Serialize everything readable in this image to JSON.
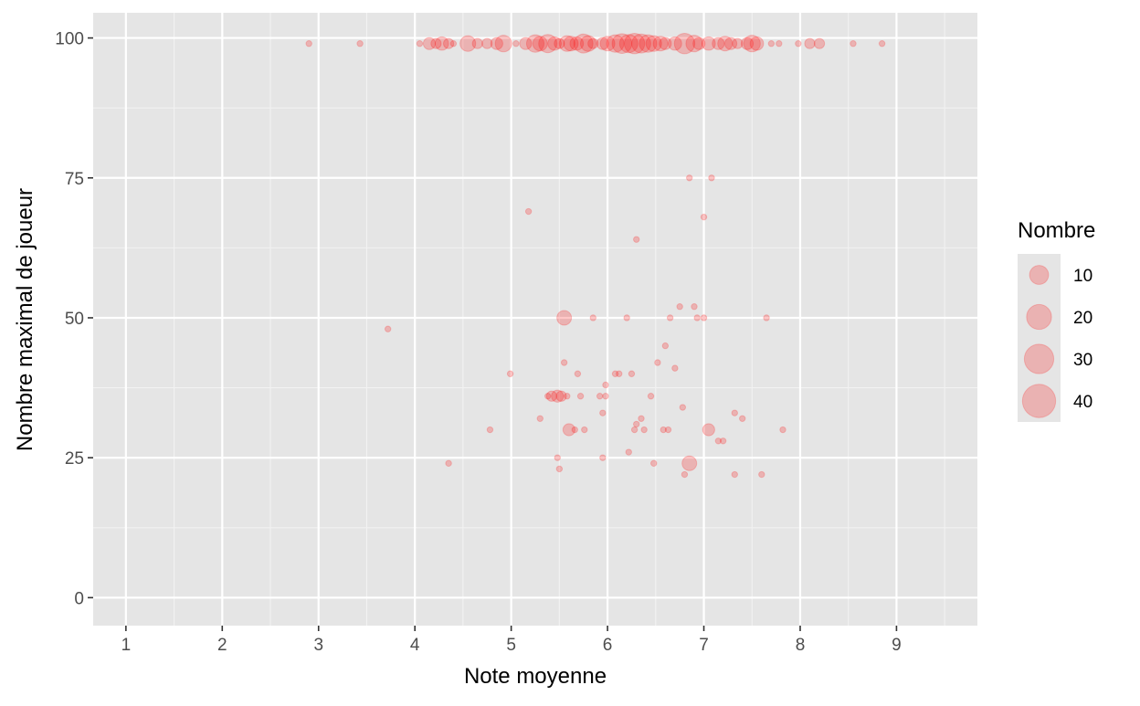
{
  "chart_data": {
    "type": "scatter",
    "title": "",
    "xlabel": "Note moyenne",
    "ylabel": "Nombre maximal de joueur",
    "xlim": [
      0.66,
      9.84
    ],
    "ylim": [
      -5,
      104.5
    ],
    "x_ticks": [
      1,
      2,
      3,
      4,
      5,
      6,
      7,
      8,
      9
    ],
    "x_tick_labels": [
      "1",
      "2",
      "3",
      "4",
      "5",
      "6",
      "7",
      "8",
      "9"
    ],
    "y_ticks": [
      0,
      25,
      50,
      75,
      100
    ],
    "y_tick_labels": [
      "0",
      "25",
      "50",
      "75",
      "100"
    ],
    "grid": true,
    "panel_background": "#e5e5e5",
    "point_color": "#ff0000",
    "point_alpha": 0.22,
    "size_legend": {
      "title": "Nombre",
      "position": "right",
      "values": [
        10,
        20,
        30,
        40
      ],
      "labels": [
        "10",
        "20",
        "30",
        "40"
      ]
    },
    "series": [
      {
        "points": [
          [
            2.9,
            99,
            1
          ],
          [
            3.43,
            99,
            1
          ],
          [
            4.05,
            99,
            1
          ],
          [
            4.15,
            99,
            3
          ],
          [
            4.22,
            99,
            2
          ],
          [
            4.28,
            99,
            4
          ],
          [
            4.35,
            99,
            2
          ],
          [
            4.4,
            99,
            1
          ],
          [
            4.55,
            99,
            6
          ],
          [
            4.65,
            99,
            2
          ],
          [
            4.75,
            99,
            2
          ],
          [
            4.85,
            99,
            3
          ],
          [
            4.92,
            99,
            7
          ],
          [
            5.05,
            99,
            1
          ],
          [
            5.15,
            99,
            3
          ],
          [
            5.25,
            99,
            8
          ],
          [
            5.3,
            99,
            5
          ],
          [
            5.38,
            99,
            9
          ],
          [
            5.45,
            99,
            4
          ],
          [
            5.5,
            99,
            2
          ],
          [
            5.58,
            99,
            6
          ],
          [
            5.62,
            99,
            5
          ],
          [
            5.68,
            99,
            4
          ],
          [
            5.75,
            99,
            10
          ],
          [
            5.8,
            99,
            6
          ],
          [
            5.85,
            99,
            2
          ],
          [
            5.95,
            99,
            3
          ],
          [
            6.0,
            99,
            5
          ],
          [
            6.08,
            99,
            8
          ],
          [
            6.15,
            99,
            11
          ],
          [
            6.22,
            99,
            9
          ],
          [
            6.28,
            99,
            12
          ],
          [
            6.35,
            99,
            10
          ],
          [
            6.42,
            99,
            8
          ],
          [
            6.48,
            99,
            6
          ],
          [
            6.55,
            99,
            5
          ],
          [
            6.6,
            99,
            3
          ],
          [
            6.7,
            99,
            4
          ],
          [
            6.8,
            99,
            12
          ],
          [
            6.9,
            99,
            7
          ],
          [
            6.95,
            99,
            3
          ],
          [
            7.05,
            99,
            4
          ],
          [
            7.15,
            99,
            3
          ],
          [
            7.22,
            99,
            5
          ],
          [
            7.28,
            99,
            3
          ],
          [
            7.35,
            99,
            2
          ],
          [
            7.45,
            99,
            3
          ],
          [
            7.5,
            99,
            7
          ],
          [
            7.55,
            99,
            4
          ],
          [
            7.7,
            99,
            1
          ],
          [
            7.78,
            99,
            1
          ],
          [
            7.98,
            99,
            1
          ],
          [
            8.1,
            99,
            2
          ],
          [
            8.2,
            99,
            2
          ],
          [
            8.55,
            99,
            1
          ],
          [
            8.85,
            99,
            1
          ],
          [
            6.85,
            75,
            1
          ],
          [
            7.08,
            75,
            1
          ],
          [
            5.18,
            69,
            1
          ],
          [
            7.0,
            68,
            1
          ],
          [
            6.3,
            64,
            1
          ],
          [
            6.75,
            52,
            1
          ],
          [
            6.9,
            52,
            1
          ],
          [
            3.72,
            48,
            1
          ],
          [
            5.55,
            50,
            5
          ],
          [
            5.85,
            50,
            1
          ],
          [
            6.2,
            50,
            1
          ],
          [
            6.65,
            50,
            1
          ],
          [
            6.93,
            50,
            1
          ],
          [
            7.0,
            50,
            1
          ],
          [
            7.65,
            50,
            1
          ],
          [
            6.52,
            42,
            1
          ],
          [
            5.55,
            42,
            1
          ],
          [
            4.99,
            40,
            1
          ],
          [
            5.69,
            40,
            1
          ],
          [
            6.08,
            40,
            1
          ],
          [
            6.12,
            40,
            1
          ],
          [
            6.25,
            40,
            1
          ],
          [
            6.7,
            41,
            1
          ],
          [
            6.6,
            45,
            1
          ],
          [
            5.98,
            38,
            1
          ],
          [
            5.38,
            36,
            1
          ],
          [
            5.42,
            36,
            2
          ],
          [
            5.48,
            36,
            3
          ],
          [
            5.52,
            36,
            2
          ],
          [
            5.58,
            36,
            1
          ],
          [
            5.72,
            36,
            1
          ],
          [
            5.92,
            36,
            1
          ],
          [
            5.98,
            36,
            1
          ],
          [
            6.45,
            36,
            1
          ],
          [
            6.78,
            34,
            1
          ],
          [
            7.05,
            30,
            3
          ],
          [
            7.32,
            33,
            1
          ],
          [
            7.4,
            32,
            1
          ],
          [
            6.35,
            32,
            1
          ],
          [
            6.3,
            31,
            1
          ],
          [
            5.95,
            33,
            1
          ],
          [
            5.3,
            32,
            1
          ],
          [
            4.78,
            30,
            1
          ],
          [
            5.6,
            30,
            3
          ],
          [
            5.66,
            30,
            1
          ],
          [
            5.76,
            30,
            1
          ],
          [
            6.28,
            30,
            1
          ],
          [
            6.38,
            30,
            1
          ],
          [
            6.58,
            30,
            1
          ],
          [
            6.63,
            30,
            1
          ],
          [
            7.82,
            30,
            1
          ],
          [
            7.15,
            28,
            1
          ],
          [
            7.2,
            28,
            1
          ],
          [
            6.22,
            26,
            1
          ],
          [
            4.35,
            24,
            1
          ],
          [
            5.48,
            25,
            1
          ],
          [
            5.95,
            25,
            1
          ],
          [
            6.48,
            24,
            1
          ],
          [
            6.85,
            24,
            5
          ],
          [
            5.5,
            23,
            1
          ],
          [
            6.8,
            22,
            1
          ],
          [
            7.32,
            22,
            1
          ],
          [
            7.6,
            22,
            1
          ]
        ]
      }
    ]
  }
}
